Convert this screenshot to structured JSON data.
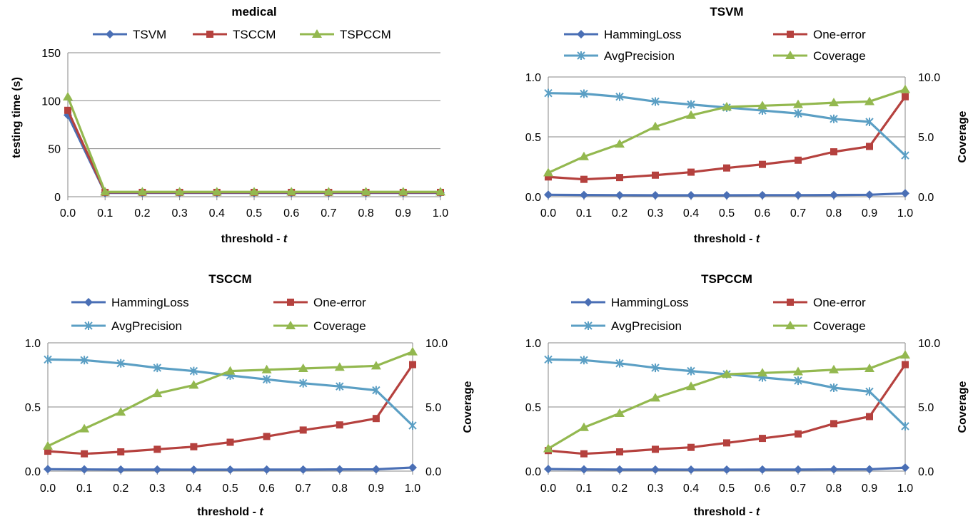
{
  "chart_data": [
    {
      "id": "medical",
      "type": "line",
      "title": "medical",
      "xlabel_prefix": "threshold - ",
      "xlabel_var": "t",
      "ylabel": "testing time (s)",
      "x_ticks": [
        "0.0",
        "0.1",
        "0.2",
        "0.3",
        "0.4",
        "0.5",
        "0.6",
        "0.7",
        "0.8",
        "0.9",
        "1.0"
      ],
      "x": [
        0.0,
        0.1,
        0.2,
        0.3,
        0.4,
        0.5,
        0.6,
        0.7,
        0.8,
        0.9,
        1.0
      ],
      "ylim": [
        0,
        150
      ],
      "y_ticks": [
        "0",
        "50",
        "100",
        "150"
      ],
      "grid": true,
      "legend_position": "top",
      "series": [
        {
          "name": "TSVM",
          "axis": "left",
          "marker": "diamond",
          "color": "#4a6fb5",
          "values": [
            85,
            4,
            4,
            4,
            4,
            4,
            4,
            4,
            4,
            4,
            4
          ]
        },
        {
          "name": "TSCCM",
          "axis": "left",
          "marker": "square",
          "color": "#b5413e",
          "values": [
            90,
            4.5,
            4.5,
            4.5,
            4.5,
            4.5,
            4.5,
            4.5,
            4.5,
            4.5,
            4.5
          ]
        },
        {
          "name": "TSPCCM",
          "axis": "left",
          "marker": "triangle",
          "color": "#93b84f",
          "values": [
            104,
            5,
            5,
            5,
            5,
            5,
            5,
            5,
            5,
            5,
            5
          ]
        }
      ]
    },
    {
      "id": "tsvm",
      "type": "line",
      "title": "TSVM",
      "xlabel_prefix": "threshold - ",
      "xlabel_var": "t",
      "ylabel": "",
      "y2label": "Coverage",
      "x_ticks": [
        "0.0",
        "0.1",
        "0.2",
        "0.3",
        "0.4",
        "0.5",
        "0.6",
        "0.7",
        "0.8",
        "0.9",
        "1.0"
      ],
      "x": [
        0.0,
        0.1,
        0.2,
        0.3,
        0.4,
        0.5,
        0.6,
        0.7,
        0.8,
        0.9,
        1.0
      ],
      "ylim": [
        0,
        1
      ],
      "y_ticks": [
        "0.0",
        "0.5",
        "1.0"
      ],
      "y2lim": [
        0,
        10
      ],
      "y2_ticks": [
        "0.0",
        "5.0",
        "10.0"
      ],
      "grid": true,
      "legend_position": "top",
      "series": [
        {
          "name": "HammingLoss",
          "axis": "left",
          "marker": "diamond",
          "color": "#4a6fb5",
          "values": [
            0.016,
            0.014,
            0.013,
            0.012,
            0.012,
            0.012,
            0.013,
            0.013,
            0.014,
            0.016,
            0.028
          ]
        },
        {
          "name": "One-error",
          "axis": "left",
          "marker": "square",
          "color": "#b5413e",
          "values": [
            0.165,
            0.145,
            0.16,
            0.18,
            0.205,
            0.24,
            0.27,
            0.305,
            0.375,
            0.42,
            0.835
          ]
        },
        {
          "name": "AvgPrecision",
          "axis": "left",
          "marker": "star",
          "color": "#5b9fc4",
          "values": [
            0.865,
            0.86,
            0.835,
            0.795,
            0.77,
            0.745,
            0.72,
            0.695,
            0.65,
            0.625,
            0.345
          ]
        },
        {
          "name": "Coverage",
          "axis": "right",
          "marker": "triangle",
          "color": "#93b84f",
          "values": [
            2.0,
            3.35,
            4.4,
            5.85,
            6.8,
            7.5,
            7.6,
            7.7,
            7.85,
            7.95,
            8.95
          ]
        }
      ]
    },
    {
      "id": "tsccm",
      "type": "line",
      "title": "TSCCM",
      "xlabel_prefix": "threshold - ",
      "xlabel_var": "t",
      "ylabel": "",
      "y2label": "Coverage",
      "x_ticks": [
        "0.0",
        "0.1",
        "0.2",
        "0.3",
        "0.4",
        "0.5",
        "0.6",
        "0.7",
        "0.8",
        "0.9",
        "1.0"
      ],
      "x": [
        0.0,
        0.1,
        0.2,
        0.3,
        0.4,
        0.5,
        0.6,
        0.7,
        0.8,
        0.9,
        1.0
      ],
      "ylim": [
        0,
        1
      ],
      "y_ticks": [
        "0.0",
        "0.5",
        "1.0"
      ],
      "y2lim": [
        0,
        10
      ],
      "y2_ticks": [
        "0.0",
        "5.0",
        "10.0"
      ],
      "grid": true,
      "legend_position": "top",
      "series": [
        {
          "name": "HammingLoss",
          "axis": "left",
          "marker": "diamond",
          "color": "#4a6fb5",
          "values": [
            0.015,
            0.013,
            0.012,
            0.012,
            0.011,
            0.011,
            0.012,
            0.012,
            0.013,
            0.014,
            0.028
          ]
        },
        {
          "name": "One-error",
          "axis": "left",
          "marker": "square",
          "color": "#b5413e",
          "values": [
            0.155,
            0.135,
            0.15,
            0.17,
            0.19,
            0.225,
            0.27,
            0.32,
            0.36,
            0.41,
            0.83
          ]
        },
        {
          "name": "AvgPrecision",
          "axis": "left",
          "marker": "star",
          "color": "#5b9fc4",
          "values": [
            0.87,
            0.865,
            0.84,
            0.805,
            0.78,
            0.745,
            0.715,
            0.685,
            0.66,
            0.63,
            0.355
          ]
        },
        {
          "name": "Coverage",
          "axis": "right",
          "marker": "triangle",
          "color": "#93b84f",
          "values": [
            1.95,
            3.3,
            4.6,
            6.05,
            6.7,
            7.8,
            7.9,
            8.0,
            8.1,
            8.2,
            9.3
          ]
        }
      ]
    },
    {
      "id": "tspccm",
      "type": "line",
      "title": "TSPCCM",
      "xlabel_prefix": "threshold - ",
      "xlabel_var": "t",
      "ylabel": "",
      "y2label": "Coverage",
      "x_ticks": [
        "0.0",
        "0.1",
        "0.2",
        "0.3",
        "0.4",
        "0.5",
        "0.6",
        "0.7",
        "0.8",
        "0.9",
        "1.0"
      ],
      "x": [
        0.0,
        0.1,
        0.2,
        0.3,
        0.4,
        0.5,
        0.6,
        0.7,
        0.8,
        0.9,
        1.0
      ],
      "ylim": [
        0,
        1
      ],
      "y_ticks": [
        "0.0",
        "0.5",
        "1.0"
      ],
      "y2lim": [
        0,
        10
      ],
      "y2_ticks": [
        "0.0",
        "5.0",
        "10.0"
      ],
      "grid": true,
      "legend_position": "top",
      "series": [
        {
          "name": "HammingLoss",
          "axis": "left",
          "marker": "diamond",
          "color": "#4a6fb5",
          "values": [
            0.016,
            0.013,
            0.012,
            0.012,
            0.011,
            0.011,
            0.012,
            0.012,
            0.013,
            0.014,
            0.027
          ]
        },
        {
          "name": "One-error",
          "axis": "left",
          "marker": "square",
          "color": "#b5413e",
          "values": [
            0.16,
            0.135,
            0.15,
            0.17,
            0.185,
            0.22,
            0.255,
            0.29,
            0.37,
            0.425,
            0.83
          ]
        },
        {
          "name": "AvgPrecision",
          "axis": "left",
          "marker": "star",
          "color": "#5b9fc4",
          "values": [
            0.87,
            0.865,
            0.84,
            0.805,
            0.78,
            0.755,
            0.73,
            0.705,
            0.65,
            0.62,
            0.35
          ]
        },
        {
          "name": "Coverage",
          "axis": "right",
          "marker": "triangle",
          "color": "#93b84f",
          "values": [
            1.75,
            3.4,
            4.5,
            5.7,
            6.6,
            7.55,
            7.65,
            7.75,
            7.9,
            8.0,
            9.05
          ]
        }
      ]
    }
  ]
}
